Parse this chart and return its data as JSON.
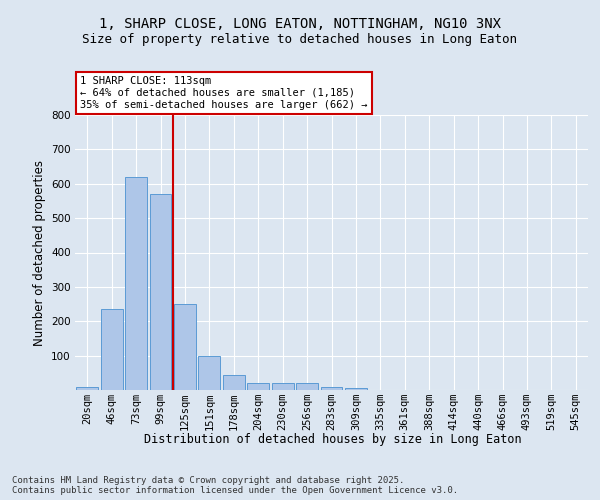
{
  "title_line1": "1, SHARP CLOSE, LONG EATON, NOTTINGHAM, NG10 3NX",
  "title_line2": "Size of property relative to detached houses in Long Eaton",
  "xlabel": "Distribution of detached houses by size in Long Eaton",
  "ylabel": "Number of detached properties",
  "bar_labels": [
    "20sqm",
    "46sqm",
    "73sqm",
    "99sqm",
    "125sqm",
    "151sqm",
    "178sqm",
    "204sqm",
    "230sqm",
    "256sqm",
    "283sqm",
    "309sqm",
    "335sqm",
    "361sqm",
    "388sqm",
    "414sqm",
    "440sqm",
    "466sqm",
    "493sqm",
    "519sqm",
    "545sqm"
  ],
  "bar_values": [
    10,
    235,
    620,
    570,
    250,
    100,
    45,
    20,
    20,
    20,
    8,
    5,
    0,
    0,
    0,
    0,
    0,
    0,
    0,
    0,
    0
  ],
  "bar_color": "#aec6e8",
  "bar_edge_color": "#5b9bd5",
  "background_color": "#dce6f1",
  "plot_bg_color": "#dce6f1",
  "grid_color": "#ffffff",
  "vline_x": 3.5,
  "vline_color": "#cc0000",
  "annotation_text": "1 SHARP CLOSE: 113sqm\n← 64% of detached houses are smaller (1,185)\n35% of semi-detached houses are larger (662) →",
  "annotation_box_color": "#ffffff",
  "annotation_box_edge": "#cc0000",
  "ylim": [
    0,
    800
  ],
  "yticks": [
    0,
    100,
    200,
    300,
    400,
    500,
    600,
    700,
    800
  ],
  "footnote": "Contains HM Land Registry data © Crown copyright and database right 2025.\nContains public sector information licensed under the Open Government Licence v3.0.",
  "title_fontsize": 10,
  "subtitle_fontsize": 9,
  "axis_label_fontsize": 8.5,
  "tick_fontsize": 7.5,
  "annotation_fontsize": 7.5,
  "footnote_fontsize": 6.5
}
